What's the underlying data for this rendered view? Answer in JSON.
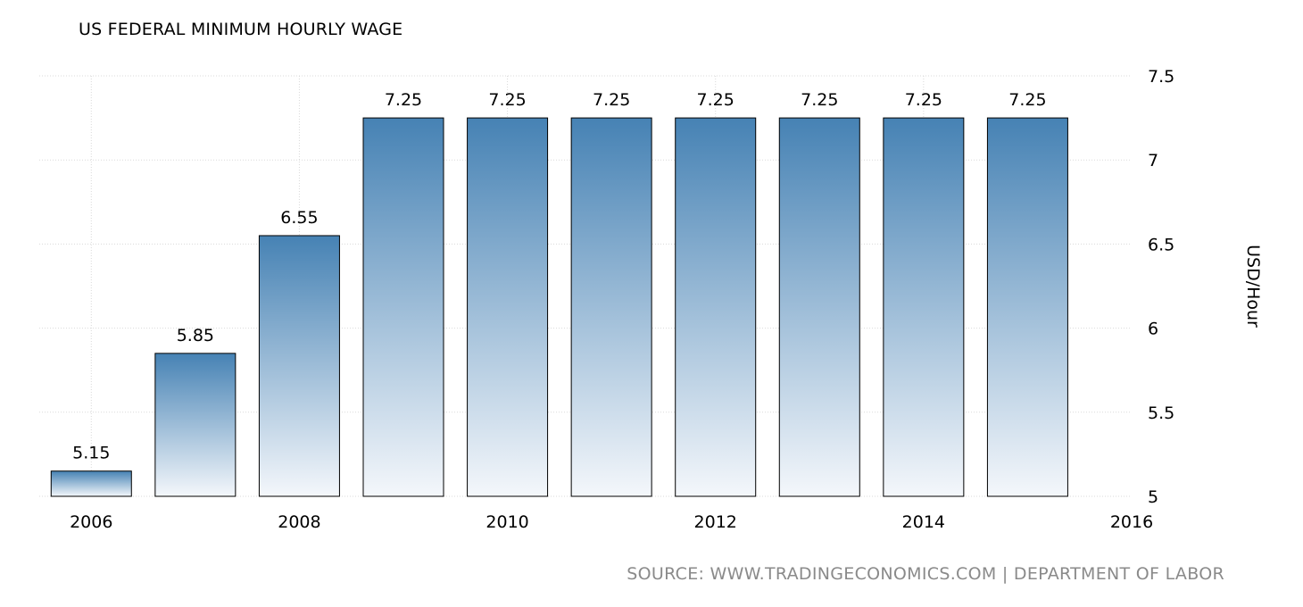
{
  "chart_data": {
    "type": "bar",
    "title": "US FEDERAL MINIMUM HOURLY WAGE",
    "ylabel": "USD/Hour",
    "xlabel": "",
    "categories": [
      "2006",
      "2007",
      "2008",
      "2009",
      "2010",
      "2011",
      "2012",
      "2013",
      "2014",
      "2015"
    ],
    "values": [
      5.15,
      5.85,
      6.55,
      7.25,
      7.25,
      7.25,
      7.25,
      7.25,
      7.25,
      7.25
    ],
    "value_labels": [
      "5.15",
      "5.85",
      "6.55",
      "7.25",
      "7.25",
      "7.25",
      "7.25",
      "7.25",
      "7.25",
      "7.25"
    ],
    "xlim": [
      2005.5,
      2016
    ],
    "ylim": [
      5,
      7.5
    ],
    "x_ticks": [
      "2006",
      "2008",
      "2010",
      "2012",
      "2014",
      "2016"
    ],
    "y_ticks": [
      "5",
      "5.5",
      "6",
      "6.5",
      "7",
      "7.5"
    ],
    "y_axis_position": "right",
    "grid": true,
    "bar_color_top": "#4682b4",
    "bar_color_bottom": "#f4f7fb",
    "source": "SOURCE: WWW.TRADINGECONOMICS.COM | DEPARTMENT OF LABOR"
  }
}
